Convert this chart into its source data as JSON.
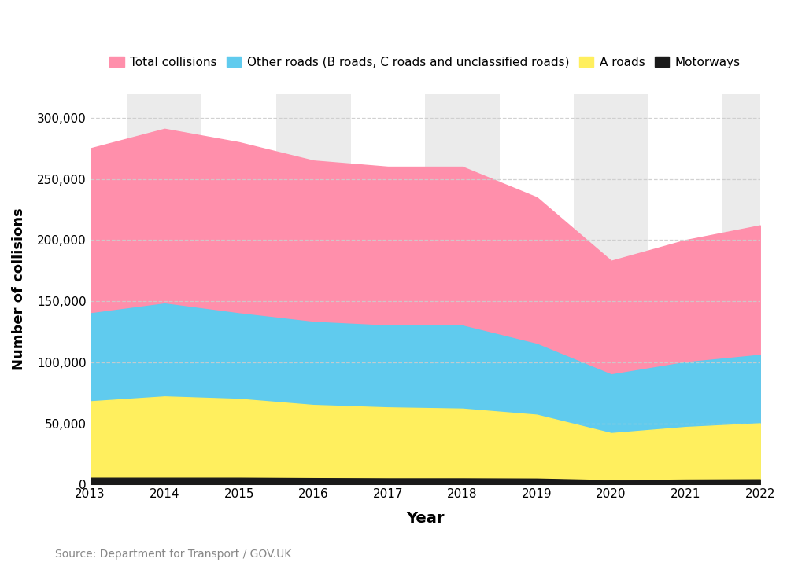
{
  "years": [
    2013,
    2014,
    2015,
    2016,
    2017,
    2018,
    2019,
    2020,
    2021,
    2022
  ],
  "total_collisions": [
    275000,
    291000,
    280000,
    265000,
    260000,
    260000,
    235000,
    183000,
    200000,
    212000
  ],
  "other_roads": [
    140000,
    148000,
    140000,
    133000,
    130000,
    130000,
    115000,
    90000,
    100000,
    106000
  ],
  "a_roads": [
    68000,
    72000,
    70000,
    65000,
    63000,
    62000,
    57000,
    42000,
    47000,
    50000
  ],
  "motorways": [
    5500,
    5500,
    5500,
    5200,
    5000,
    5000,
    4800,
    3500,
    4000,
    4200
  ],
  "colors": {
    "total_collisions": "#FF8FAB",
    "other_roads": "#60CBEE",
    "a_roads": "#FFEF5E",
    "motorways": "#1A1A1A"
  },
  "legend_labels": [
    "Total collisions",
    "Other roads (B roads, C roads and unclassified roads)",
    "A roads",
    "Motorways"
  ],
  "xlabel": "Year",
  "ylabel": "Number of collisions",
  "ylim": [
    0,
    320000
  ],
  "yticks": [
    0,
    50000,
    100000,
    150000,
    200000,
    250000,
    300000
  ],
  "source_text": "Source: Department for Transport / GOV.UK",
  "bg_stripe_years": [
    2014,
    2016,
    2018,
    2020,
    2022
  ],
  "bg_stripe_color": "#EBEBEB"
}
